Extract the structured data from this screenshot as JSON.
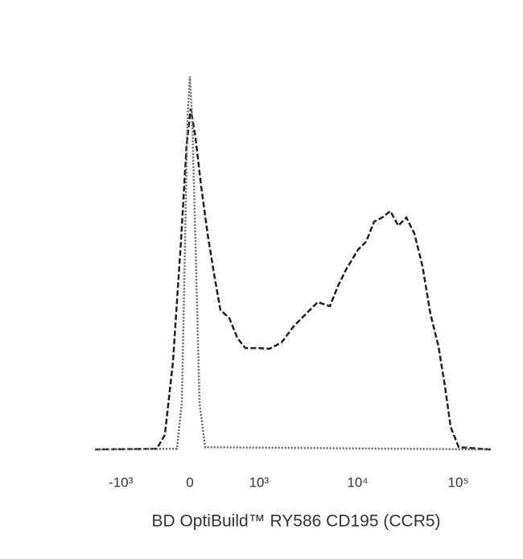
{
  "chart_data": {
    "type": "line",
    "xlabel": "BD OptiBuild™ RY586 CD195 (CCR5)",
    "xscale": "biexponential",
    "xlim": [
      -1862,
      210700
    ],
    "xticks": [
      {
        "value": -1000,
        "label": "-10³"
      },
      0,
      {
        "value": 1000,
        "label": "10³"
      },
      {
        "value": 10000,
        "label": "10⁴"
      },
      {
        "value": 100000,
        "label": "10⁵"
      }
    ],
    "ylim": [
      0,
      100
    ],
    "series": [
      {
        "color": "#222222",
        "linestyle": "dashed",
        "x": [
          -1862,
          -357,
          -259,
          -171,
          -88,
          -32,
          8,
          55,
          112,
          179,
          250,
          326,
          443,
          568,
          705,
          963,
          1299,
          1729,
          2292,
          3036,
          4008,
          5289,
          6364,
          7654,
          10105,
          12126,
          14577,
          17544,
          21113,
          25370,
          30487,
          36636,
          44032,
          52976,
          63683,
          73874,
          84022,
          101007,
          210700
        ],
        "values": [
          0,
          0.2,
          3.9,
          23.3,
          55.7,
          81.6,
          91.4,
          83.8,
          70.8,
          57.9,
          47.1,
          37.4,
          35.2,
          29.8,
          27.2,
          27.2,
          27.0,
          28.7,
          33.0,
          36.3,
          39.5,
          38.4,
          43.8,
          48.2,
          53.6,
          55.7,
          61.1,
          62.2,
          63.9,
          60.0,
          62.2,
          57.9,
          49.2,
          36.3,
          27.6,
          16.8,
          6.0,
          0.6,
          0
        ]
      },
      {
        "color": "#666666",
        "linestyle": "dotted",
        "x": [
          -1862,
          -129,
          -79,
          -47,
          -24,
          0,
          24,
          55,
          96,
          154,
          210700
        ],
        "values": [
          0,
          0.2,
          12.5,
          55.7,
          88.1,
          100,
          88.1,
          55.7,
          12.3,
          0.6,
          0
        ]
      }
    ]
  }
}
